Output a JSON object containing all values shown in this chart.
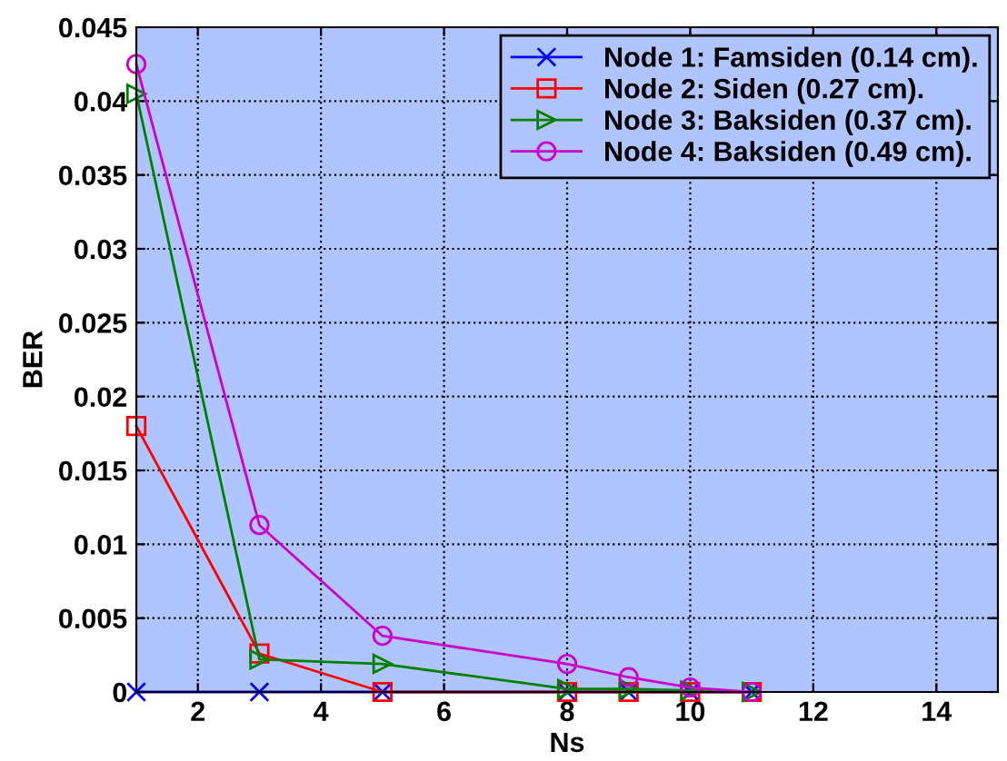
{
  "chart_data": {
    "type": "line",
    "xlabel": "Ns",
    "ylabel": "BER",
    "x": [
      1,
      3,
      5,
      8,
      9,
      10,
      11
    ],
    "xlim": [
      1,
      15
    ],
    "xticks": [
      2,
      4,
      6,
      8,
      10,
      12,
      14
    ],
    "ylim": [
      0,
      0.045
    ],
    "yticks": [
      0,
      0.005,
      0.01,
      0.015,
      0.02,
      0.025,
      0.03,
      0.035,
      0.04,
      0.045
    ],
    "grid": true,
    "legend": "top right",
    "series": [
      {
        "name": "Node 1: Famsiden (0.14 cm).",
        "color": "#0000ff",
        "marker": "cross",
        "values": [
          0,
          0,
          0,
          0,
          0,
          0,
          0
        ]
      },
      {
        "name": "Node 2: Siden (0.27 cm).",
        "color": "#ff0000",
        "marker": "square",
        "values": [
          0.018,
          0.0026,
          0,
          0,
          0,
          0,
          0
        ]
      },
      {
        "name": "Node 3: Baksiden (0.37 cm).",
        "color": "#008000",
        "marker": "triangle",
        "values": [
          0.0405,
          0.0022,
          0.0019,
          0.0002,
          0.0002,
          0.0001,
          0
        ]
      },
      {
        "name": "Node 4: Baksiden (0.49 cm).",
        "color": "#cc00cc",
        "marker": "circle",
        "values": [
          0.0425,
          0.0113,
          0.0038,
          0.0019,
          0.001,
          0.0003,
          0
        ]
      }
    ]
  }
}
